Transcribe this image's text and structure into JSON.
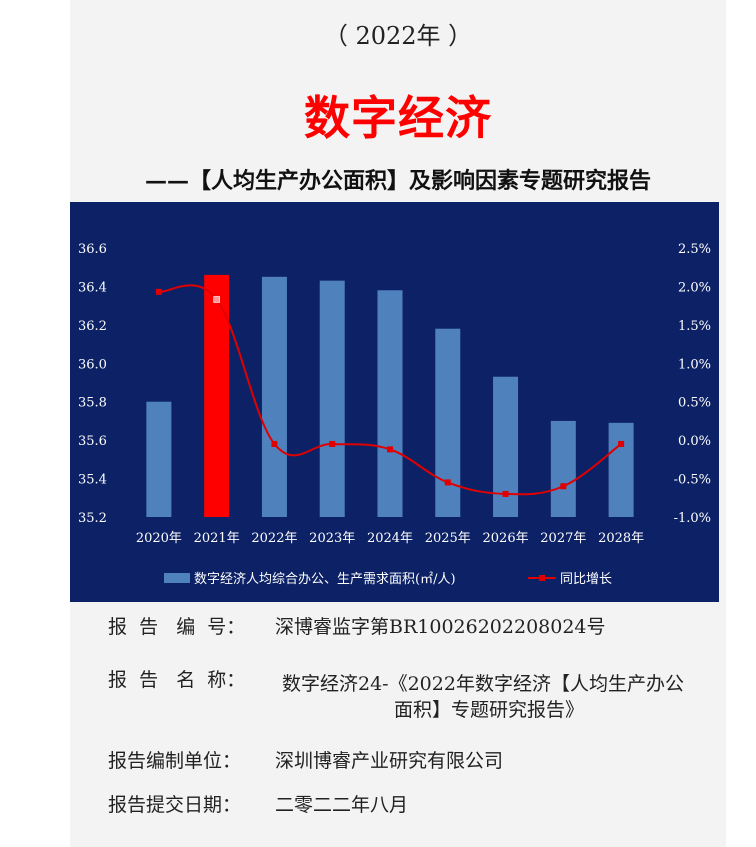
{
  "header": {
    "year_line": "（ 2022年 ）",
    "title": "数字经济",
    "subtitle": "——【人均生产办公面积】及影响因素专题研究报告"
  },
  "chart_data": {
    "type": "bar",
    "categories": [
      "2020年",
      "2021年",
      "2022年",
      "2023年",
      "2024年",
      "2025年",
      "2026年",
      "2027年",
      "2028年"
    ],
    "series": [
      {
        "name": "数字经济人均综合办公、生产需求面积(㎡/人)",
        "kind": "bar",
        "axis": "left",
        "values": [
          35.8,
          36.46,
          36.45,
          36.43,
          36.38,
          36.18,
          35.93,
          35.7,
          35.69
        ],
        "color": "#4f81bd"
      },
      {
        "name": "同比增长",
        "kind": "line",
        "axis": "right",
        "values": [
          1.93,
          1.83,
          -0.05,
          -0.05,
          -0.12,
          -0.55,
          -0.7,
          -0.6,
          -0.05
        ],
        "color": "#e00000"
      }
    ],
    "highlight_index": 1,
    "highlight_color": "#ff0000",
    "y_left": {
      "min": 35.2,
      "max": 36.6,
      "ticks": [
        "35.2",
        "35.4",
        "35.6",
        "35.8",
        "36.0",
        "36.2",
        "36.4",
        "36.6"
      ]
    },
    "y_right": {
      "min": -1.0,
      "max": 2.5,
      "ticks": [
        "-1.0%",
        "-0.5%",
        "0.0%",
        "0.5%",
        "1.0%",
        "1.5%",
        "2.0%",
        "2.5%"
      ]
    },
    "legend_position": "bottom",
    "background": "#0d2266"
  },
  "info": {
    "number_label": "报  告   编  号：",
    "number_value": "深博睿监字第BR10026202208024号",
    "name_label": "报  告   名  称：",
    "name_value_line1": "数字经济24-《2022年数字经济【人均生产办公",
    "name_value_line2": "面积】专题研究报告》",
    "org_label": "报告编制单位：",
    "org_value": "深圳博睿产业研究有限公司",
    "date_label": "报告提交日期：",
    "date_value": "二零二二年八月"
  }
}
